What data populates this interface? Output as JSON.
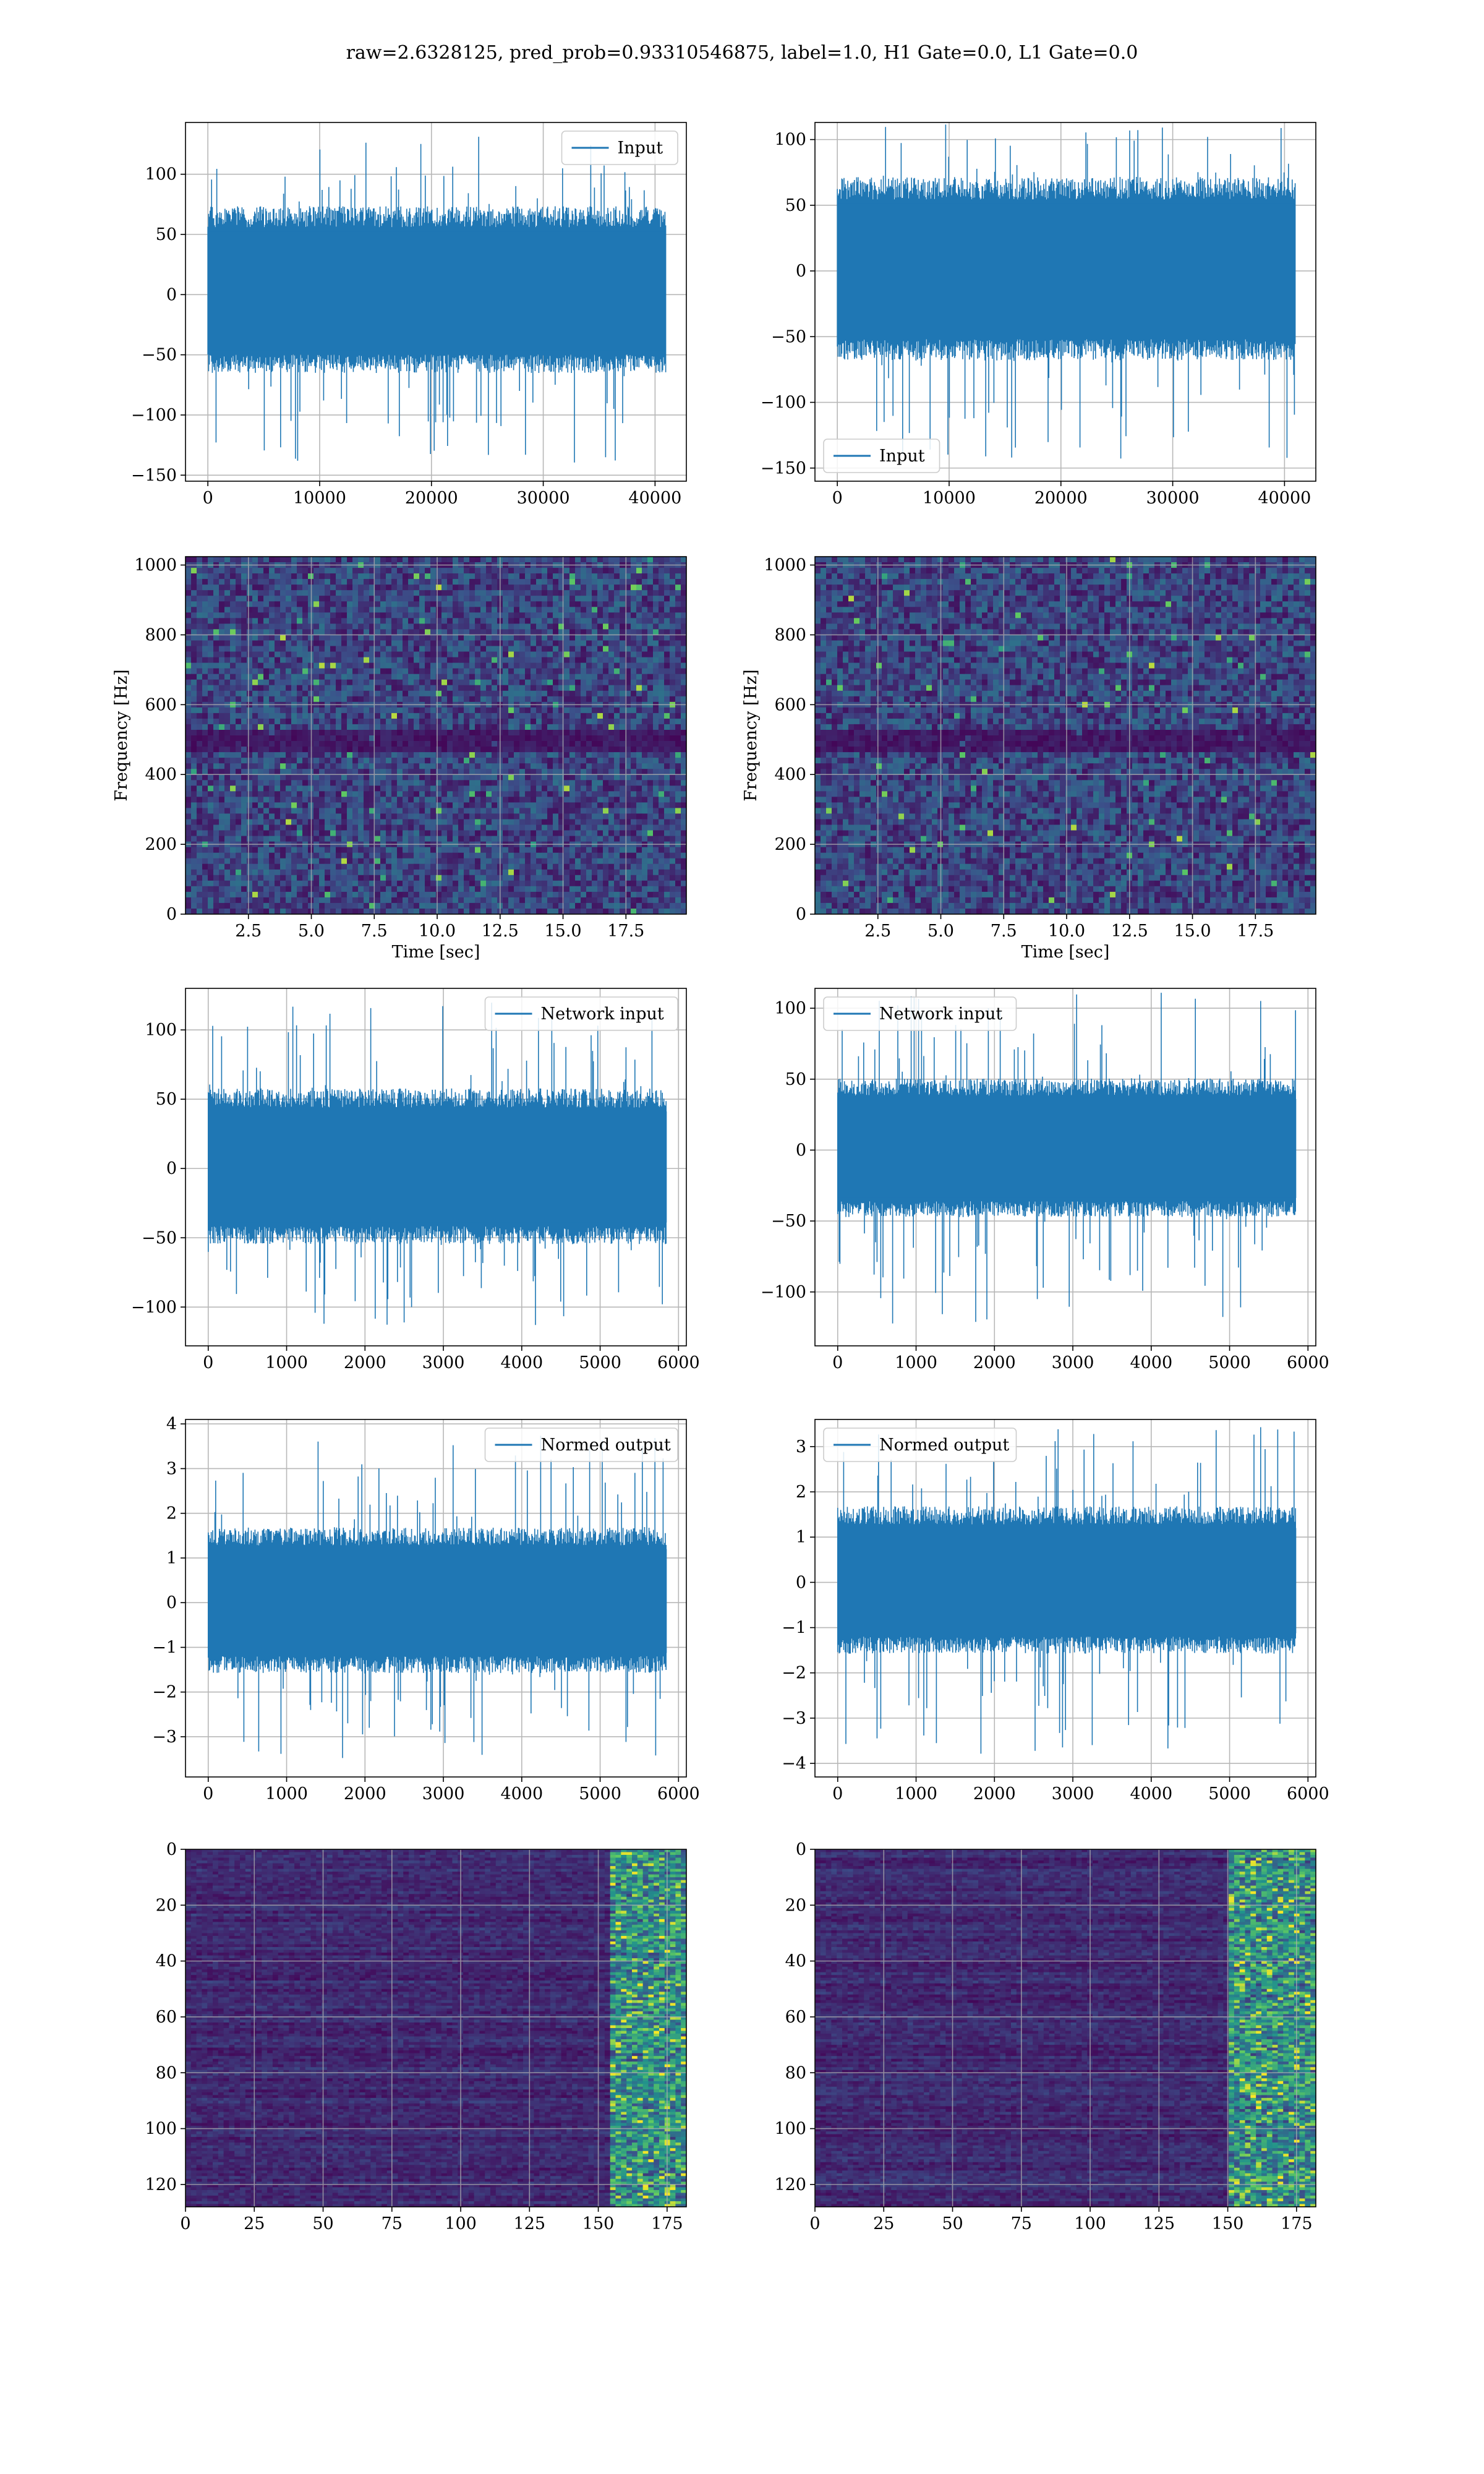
{
  "figure": {
    "suptitle": "raw=2.6328125, pred_prob=0.93310546875, label=1.0, H1 Gate=0.0, L1 Gate=0.0"
  },
  "colors": {
    "series": "#1f77b4",
    "grid": "#b0b0b0",
    "viridis_low": "#440154",
    "viridis_mid": "#31688e",
    "viridis_high": "#fde725"
  },
  "chart_data": [
    {
      "id": "input-left",
      "type": "line",
      "legend": "Input",
      "legend_loc": "upper right",
      "grid": true,
      "xlim": [
        -2000,
        42800
      ],
      "ylim": [
        -155,
        143
      ],
      "xticks": [
        0,
        10000,
        20000,
        30000,
        40000
      ],
      "yticks": [
        -150,
        -100,
        -50,
        0,
        50,
        100
      ],
      "ytick_labels": [
        "−150",
        "−100",
        "−50",
        "0",
        "50",
        "100"
      ],
      "samples": 40960,
      "x_range": [
        0,
        40960
      ],
      "envelope": {
        "core": [
          -62,
          70
        ],
        "peak": [
          -140,
          133
        ]
      }
    },
    {
      "id": "input-right",
      "type": "line",
      "legend": "Input",
      "legend_loc": "lower left",
      "grid": true,
      "xlim": [
        -2000,
        42800
      ],
      "ylim": [
        -160,
        113
      ],
      "xticks": [
        0,
        10000,
        20000,
        30000,
        40000
      ],
      "yticks": [
        -150,
        -100,
        -50,
        0,
        50,
        100
      ],
      "ytick_labels": [
        "−150",
        "−100",
        "−50",
        "0",
        "50",
        "100"
      ],
      "samples": 40960,
      "x_range": [
        0,
        40960
      ],
      "envelope": {
        "core": [
          -65,
          68
        ],
        "peak": [
          -146,
          112
        ]
      }
    },
    {
      "id": "spec-left",
      "type": "heatmap",
      "grid": true,
      "xlabel": "Time [sec]",
      "ylabel": "Frequency [Hz]",
      "xlim": [
        0,
        19.9
      ],
      "ylim": [
        0,
        1024
      ],
      "xticks": [
        2.5,
        5.0,
        7.5,
        10.0,
        12.5,
        15.0,
        17.5
      ],
      "xtick_labels": [
        "2.5",
        "5.0",
        "7.5",
        "10.0",
        "12.5",
        "15.0",
        "17.5"
      ],
      "yticks": [
        0,
        200,
        400,
        600,
        800,
        1000
      ],
      "dark_band_hz": [
        500,
        60
      ],
      "colormap": "viridis"
    },
    {
      "id": "spec-right",
      "type": "heatmap",
      "grid": true,
      "xlabel": "Time [sec]",
      "ylabel": "Frequency [Hz]",
      "xlim": [
        0,
        19.9
      ],
      "ylim": [
        0,
        1024
      ],
      "xticks": [
        2.5,
        5.0,
        7.5,
        10.0,
        12.5,
        15.0,
        17.5
      ],
      "xtick_labels": [
        "2.5",
        "5.0",
        "7.5",
        "10.0",
        "12.5",
        "15.0",
        "17.5"
      ],
      "yticks": [
        0,
        200,
        400,
        600,
        800,
        1000
      ],
      "dark_band_hz": [
        500,
        60
      ],
      "colormap": "viridis"
    },
    {
      "id": "network-left",
      "type": "line",
      "legend": "Network input",
      "legend_loc": "upper right",
      "grid": true,
      "xlim": [
        -290,
        6100
      ],
      "ylim": [
        -128,
        130
      ],
      "xticks": [
        0,
        1000,
        2000,
        3000,
        4000,
        5000,
        6000
      ],
      "yticks": [
        -100,
        -50,
        0,
        50,
        100
      ],
      "ytick_labels": [
        "−100",
        "−50",
        "0",
        "50",
        "100"
      ],
      "samples": 5850,
      "x_range": [
        0,
        5850
      ],
      "envelope": {
        "core": [
          -52,
          55
        ],
        "peak": [
          -113,
          122
        ]
      }
    },
    {
      "id": "network-right",
      "type": "line",
      "legend": "Network input",
      "legend_loc": "upper left",
      "grid": true,
      "xlim": [
        -290,
        6100
      ],
      "ylim": [
        -138,
        114
      ],
      "xticks": [
        0,
        1000,
        2000,
        3000,
        4000,
        5000,
        6000
      ],
      "yticks": [
        -100,
        -50,
        0,
        50,
        100
      ],
      "ytick_labels": [
        "−100",
        "−50",
        "0",
        "50",
        "100"
      ],
      "samples": 5850,
      "x_range": [
        0,
        5850
      ],
      "envelope": {
        "core": [
          -45,
          48
        ],
        "peak": [
          -123,
          111
        ]
      }
    },
    {
      "id": "normed-left",
      "type": "line",
      "legend": "Normed output",
      "legend_loc": "upper right",
      "grid": true,
      "xlim": [
        -290,
        6100
      ],
      "ylim": [
        -3.9,
        4.1
      ],
      "xticks": [
        0,
        1000,
        2000,
        3000,
        4000,
        5000,
        6000
      ],
      "yticks": [
        -3,
        -2,
        -1,
        0,
        1,
        2,
        3,
        4
      ],
      "ytick_labels": [
        "−3",
        "−2",
        "−1",
        "0",
        "1",
        "2",
        "3",
        "4"
      ],
      "samples": 5850,
      "x_range": [
        0,
        5850
      ],
      "envelope": {
        "core": [
          -1.5,
          1.6
        ],
        "peak": [
          -3.5,
          3.8
        ]
      }
    },
    {
      "id": "normed-right",
      "type": "line",
      "legend": "Normed output",
      "legend_loc": "upper left",
      "grid": true,
      "xlim": [
        -290,
        6100
      ],
      "ylim": [
        -4.3,
        3.6
      ],
      "xticks": [
        0,
        1000,
        2000,
        3000,
        4000,
        5000,
        6000
      ],
      "yticks": [
        -4,
        -3,
        -2,
        -1,
        0,
        1,
        2,
        3
      ],
      "ytick_labels": [
        "−4",
        "−3",
        "−2",
        "−1",
        "0",
        "1",
        "2",
        "3"
      ],
      "samples": 5850,
      "x_range": [
        0,
        5850
      ],
      "envelope": {
        "core": [
          -1.5,
          1.6
        ],
        "peak": [
          -3.8,
          3.5
        ]
      }
    },
    {
      "id": "activation-left",
      "type": "heatmap",
      "grid": true,
      "xlim": [
        0,
        182
      ],
      "ylim": [
        128,
        0
      ],
      "xticks": [
        0,
        25,
        50,
        75,
        100,
        125,
        150,
        175
      ],
      "yticks": [
        0,
        20,
        40,
        60,
        80,
        100,
        120
      ],
      "bright_columns": [
        155,
        182
      ],
      "colormap": "viridis"
    },
    {
      "id": "activation-right",
      "type": "heatmap",
      "grid": true,
      "xlim": [
        0,
        182
      ],
      "ylim": [
        128,
        0
      ],
      "xticks": [
        0,
        25,
        50,
        75,
        100,
        125,
        150,
        175
      ],
      "yticks": [
        0,
        20,
        40,
        60,
        80,
        100,
        120
      ],
      "bright_columns": [
        150,
        182
      ],
      "colormap": "viridis"
    }
  ]
}
